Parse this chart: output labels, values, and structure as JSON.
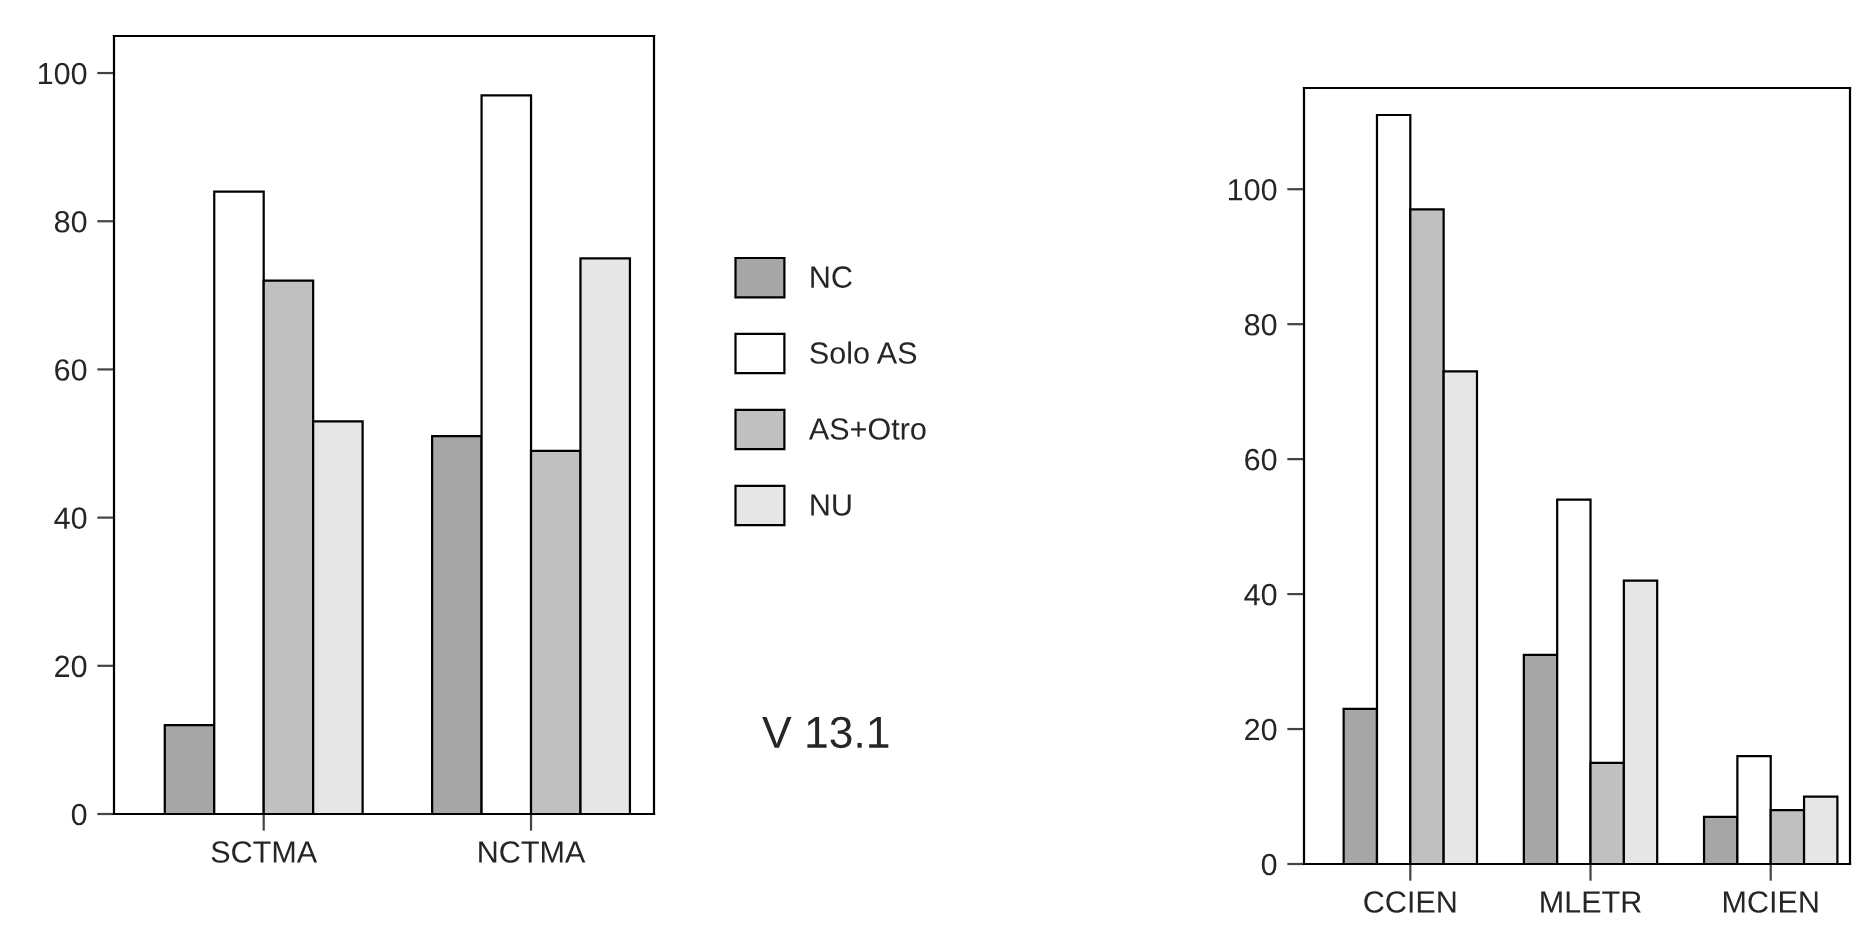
{
  "chart_data": [
    {
      "type": "bar",
      "categories": [
        "SCTMA",
        "NCTMA"
      ],
      "series": [
        {
          "name": "NC",
          "color": "#a6a6a6",
          "values": [
            12,
            51
          ]
        },
        {
          "name": "Solo AS",
          "color": "#ffffff",
          "values": [
            84,
            97
          ]
        },
        {
          "name": "AS+Otro",
          "color": "#c0c0c0",
          "values": [
            72,
            49
          ]
        },
        {
          "name": "NU",
          "color": "#e6e6e6",
          "values": [
            53,
            75
          ]
        }
      ],
      "ylim": [
        0,
        105
      ],
      "yticks": [
        0,
        20,
        40,
        60,
        80,
        100
      ],
      "grid": false,
      "legend": "right",
      "annotations": [
        "V 13.1"
      ]
    },
    {
      "type": "bar",
      "categories": [
        "CCIEN",
        "MLETR",
        "MCIEN"
      ],
      "series": [
        {
          "color": "#a6a6a6",
          "values": [
            23,
            31,
            7
          ]
        },
        {
          "color": "#ffffff",
          "values": [
            111,
            54,
            16
          ]
        },
        {
          "color": "#c0c0c0",
          "values": [
            97,
            15,
            8
          ]
        },
        {
          "color": "#e6e6e6",
          "values": [
            73,
            42,
            10
          ]
        }
      ],
      "ylim": [
        0,
        115
      ],
      "yticks": [
        0,
        20,
        40,
        60,
        80,
        100
      ],
      "grid": false
    }
  ]
}
